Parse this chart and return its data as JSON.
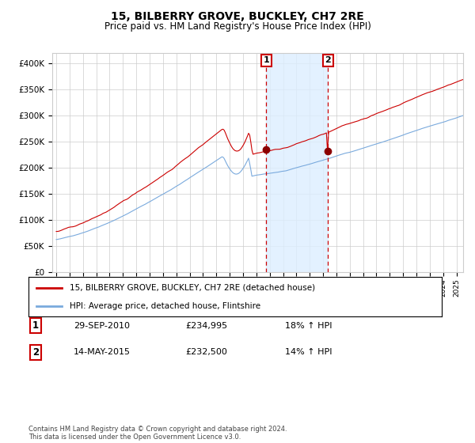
{
  "title": "15, BILBERRY GROVE, BUCKLEY, CH7 2RE",
  "subtitle": "Price paid vs. HM Land Registry's House Price Index (HPI)",
  "sale1_date": "29-SEP-2010",
  "sale1_price": 234995,
  "sale1_label": "1",
  "sale2_date": "14-MAY-2015",
  "sale2_price": 232500,
  "sale2_label": "2",
  "sale1_year": 2010.75,
  "sale2_year": 2015.37,
  "legend1": "15, BILBERRY GROVE, BUCKLEY, CH7 2RE (detached house)",
  "legend2": "HPI: Average price, detached house, Flintshire",
  "table1_num": "1",
  "table1_date": "29-SEP-2010",
  "table1_price": "£234,995",
  "table1_hpi": "18% ↑ HPI",
  "table2_num": "2",
  "table2_date": "14-MAY-2015",
  "table2_price": "£232,500",
  "table2_hpi": "14% ↑ HPI",
  "footer": "Contains HM Land Registry data © Crown copyright and database right 2024.\nThis data is licensed under the Open Government Licence v3.0.",
  "hpi_color": "#7aaadd",
  "price_color": "#cc0000",
  "dot_color": "#8b0000",
  "shade_color": "#ddeeff",
  "dashed_color": "#cc0000",
  "grid_color": "#cccccc",
  "bg_color": "#ffffff",
  "ylim": [
    0,
    420000
  ],
  "yticks": [
    0,
    50000,
    100000,
    150000,
    200000,
    250000,
    300000,
    350000,
    400000
  ],
  "ytick_labels": [
    "£0",
    "£50K",
    "£100K",
    "£150K",
    "£200K",
    "£250K",
    "£300K",
    "£350K",
    "£400K"
  ],
  "xlim_start": 1994.7,
  "xlim_end": 2025.5
}
